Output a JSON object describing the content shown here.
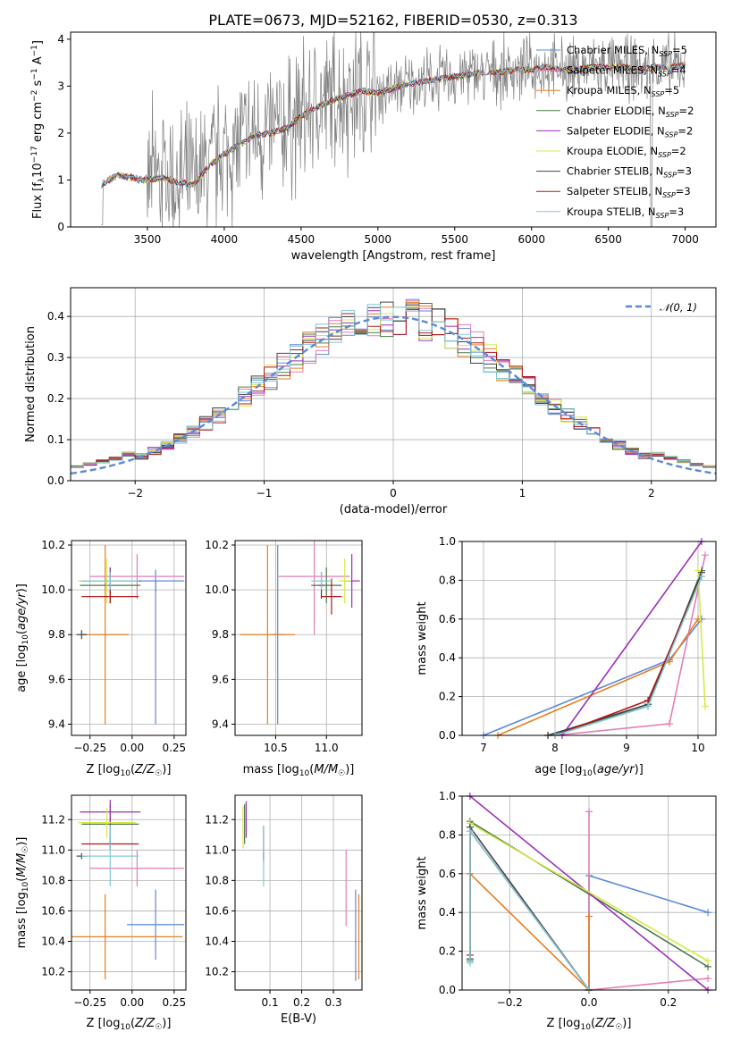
{
  "colors": {
    "Chabrier MILES": "#5b8ad6",
    "Salpeter MILES": "#e27fb8",
    "Kroupa MILES": "#e67e22",
    "Chabrier ELODIE": "#4a7a4a",
    "Salpeter ELODIE": "#9b30b8",
    "Kroupa ELODIE": "#d8e84a",
    "Chabrier STELIB": "#444444",
    "Salpeter STELIB": "#b01818",
    "Kroupa STELIB": "#80c8d8",
    "data": "#808080",
    "normal": "#5b8ad6"
  },
  "chart_data": [
    {
      "id": "spectrum",
      "type": "line",
      "title": "PLATE=0673, MJD=52162, FIBERID=0530, z=0.313",
      "xlabel": "wavelength [Angstrom, rest frame]",
      "ylabel": "Flux [f_λ 10^-17 erg cm^-2 s^-1 A^-1]",
      "xlim": [
        3000,
        7200
      ],
      "ylim": [
        0,
        4.15
      ],
      "xticks": [
        3500,
        4000,
        4500,
        5000,
        5500,
        6000,
        6500,
        7000
      ],
      "yticks": [
        0,
        1,
        2,
        3,
        4
      ],
      "grid": false,
      "legend_position": "right",
      "legend": [
        {
          "base": "Chabrier MILES, N",
          "sub": "SSP",
          "end": "=5"
        },
        {
          "base": "Salpeter MILES, N",
          "sub": "SSP",
          "end": "=4"
        },
        {
          "base": "Kroupa MILES, N",
          "sub": "SSP",
          "end": "=5"
        },
        {
          "base": "Chabrier ELODIE, N",
          "sub": "SSP",
          "end": "=2"
        },
        {
          "base": "Salpeter ELODIE, N",
          "sub": "SSP",
          "end": "=2"
        },
        {
          "base": "Kroupa ELODIE, N",
          "sub": "SSP",
          "end": "=2"
        },
        {
          "base": "Chabrier STELIB, N",
          "sub": "SSP",
          "end": "=3"
        },
        {
          "base": "Salpeter STELIB, N",
          "sub": "SSP",
          "end": "=3"
        },
        {
          "base": "Kroupa STELIB, N",
          "sub": "SSP",
          "end": "=3"
        }
      ],
      "model_shape": {
        "x": [
          3200,
          3300,
          3400,
          3500,
          3600,
          3700,
          3800,
          3900,
          4000,
          4100,
          4200,
          4300,
          4400,
          4500,
          4600,
          4700,
          4800,
          4900,
          5000,
          5100,
          5200,
          5300,
          5400,
          5500,
          5600,
          5700,
          5800,
          5900,
          6000,
          6100,
          6200,
          6300,
          6400,
          6500,
          6600,
          6700,
          6800,
          6900,
          7000
        ],
        "y": [
          0.9,
          1.1,
          1.05,
          1.0,
          1.05,
          0.95,
          0.9,
          1.3,
          1.55,
          1.75,
          1.95,
          2.0,
          2.1,
          2.35,
          2.55,
          2.7,
          2.8,
          2.9,
          2.85,
          2.95,
          3.05,
          3.1,
          3.15,
          3.2,
          3.25,
          3.3,
          3.3,
          3.35,
          3.35,
          3.4,
          3.35,
          3.35,
          3.4,
          3.4,
          3.4,
          3.35,
          3.4,
          3.4,
          3.45
        ]
      }
    },
    {
      "id": "residuals",
      "type": "histogram",
      "xlabel": "(data-model)/error",
      "ylabel": "Normed distribution",
      "xlim": [
        -2.5,
        2.5
      ],
      "ylim": [
        0,
        0.47
      ],
      "xticks": [
        -2,
        -1,
        0,
        1,
        2
      ],
      "yticks": [
        0.0,
        0.1,
        0.2,
        0.3,
        0.4
      ],
      "grid": true,
      "legend_position": "top-right",
      "legend": "N(0,1)",
      "bin_width": 0.1
    },
    {
      "id": "age_vs_Z",
      "type": "errorbar",
      "xlabel": "Z [log10(Z/Z☉)]",
      "ylabel": "age [log10(age/yr)]",
      "xlim": [
        -0.36,
        0.32
      ],
      "ylim": [
        9.35,
        10.22
      ],
      "xticks": [
        -0.25,
        0.0,
        0.25
      ],
      "yticks": [
        9.4,
        9.6,
        9.8,
        10.0,
        10.2
      ],
      "points": [
        {
          "model": "Chabrier MILES",
          "x": 0.14,
          "xerr": 0.17,
          "y": 10.04,
          "yerr": 0.05,
          "y2": 9.4
        },
        {
          "model": "Salpeter MILES",
          "x": 0.03,
          "xerr": 0.28,
          "y": 10.06,
          "yerr": 0.1
        },
        {
          "model": "Kroupa MILES",
          "x": -0.16,
          "xerr": 0.14,
          "y": 9.8,
          "yerr": 0.4
        },
        {
          "model": "Chabrier ELODIE",
          "x": -0.13,
          "xerr": 0.18,
          "y": 10.02,
          "yerr": 0.08
        },
        {
          "model": "Salpeter ELODIE",
          "x": -0.13,
          "xerr": 0.18,
          "y": 10.04,
          "yerr": 0.06
        },
        {
          "model": "Kroupa ELODIE",
          "x": -0.15,
          "xerr": 0.17,
          "y": 10.04,
          "yerr": 0.1
        },
        {
          "model": "Chabrier STELIB",
          "x": -0.3,
          "xerr": 0.03,
          "y": 9.8,
          "yerr": 0.02
        },
        {
          "model": "Salpeter STELIB",
          "x": -0.13,
          "xerr": 0.17,
          "y": 9.97,
          "yerr": 0.03
        },
        {
          "model": "Kroupa STELIB",
          "x": -0.13,
          "xerr": 0.17,
          "y": 10.04,
          "yerr": 0.04
        }
      ]
    },
    {
      "id": "age_vs_mass",
      "type": "errorbar",
      "xlabel": "mass [log10(M/M☉)]",
      "ylabel": "",
      "xlim": [
        10.1,
        11.35
      ],
      "ylim": [
        9.35,
        10.22
      ],
      "xticks": [
        10.5,
        11.0
      ],
      "yticks": [
        9.4,
        9.6,
        9.8,
        10.0,
        10.2
      ],
      "points": [
        {
          "model": "Chabrier MILES",
          "x": 10.52,
          "xerr": 0.05,
          "y": 9.8,
          "yerr": 0.4
        },
        {
          "model": "Salpeter MILES",
          "x": 10.88,
          "xerr": 0.35,
          "y": 10.06,
          "yerr": 0.26
        },
        {
          "model": "Kroupa MILES",
          "x": 10.42,
          "xerr": 0.27,
          "y": 9.8,
          "yerr": 0.4
        },
        {
          "model": "Chabrier ELODIE",
          "x": 11.0,
          "xerr": 0.15,
          "y": 10.02,
          "yerr": 0.08
        },
        {
          "model": "Salpeter ELODIE",
          "x": 11.25,
          "xerr": 0.08,
          "y": 10.04,
          "yerr": 0.12
        },
        {
          "model": "Kroupa ELODIE",
          "x": 11.18,
          "xerr": 0.06,
          "y": 10.04,
          "yerr": 0.1
        },
        {
          "model": "Chabrier STELIB",
          "x": 10.95,
          "xerr": 0.02,
          "y": 10.02,
          "yerr": 0.06
        },
        {
          "model": "Salpeter STELIB",
          "x": 11.05,
          "xerr": 0.1,
          "y": 9.97,
          "yerr": 0.08
        },
        {
          "model": "Kroupa STELIB",
          "x": 10.95,
          "xerr": 0.1,
          "y": 10.04,
          "yerr": 0.04
        }
      ]
    },
    {
      "id": "weight_vs_age",
      "type": "line",
      "xlabel": "age [log10(age/yr)]",
      "ylabel": "mass weight",
      "xlim": [
        6.7,
        10.25
      ],
      "ylim": [
        0,
        1.0
      ],
      "xticks": [
        7,
        8,
        9,
        10
      ],
      "yticks": [
        0.0,
        0.2,
        0.4,
        0.6,
        0.8,
        1.0
      ],
      "series": [
        {
          "model": "Chabrier MILES",
          "x": [
            7.0,
            9.6,
            10.05
          ],
          "y": [
            0.0,
            0.39,
            0.6
          ]
        },
        {
          "model": "Salpeter MILES",
          "x": [
            8.0,
            9.6,
            10.1
          ],
          "y": [
            0.0,
            0.06,
            0.93
          ]
        },
        {
          "model": "Kroupa MILES",
          "x": [
            7.2,
            9.6,
            10.0
          ],
          "y": [
            0.0,
            0.38,
            0.6
          ]
        },
        {
          "model": "Chabrier ELODIE",
          "x": [
            7.9,
            9.3,
            10.05
          ],
          "y": [
            0.0,
            0.15,
            0.85
          ]
        },
        {
          "model": "Salpeter ELODIE",
          "x": [
            8.1,
            10.05
          ],
          "y": [
            0.0,
            1.0
          ]
        },
        {
          "model": "Kroupa ELODIE",
          "x": [
            10.0,
            10.1
          ],
          "y": [
            0.85,
            0.15
          ]
        },
        {
          "model": "Chabrier STELIB",
          "x": [
            7.9,
            9.3,
            10.05
          ],
          "y": [
            0.0,
            0.16,
            0.84
          ]
        },
        {
          "model": "Salpeter STELIB",
          "x": [
            8.0,
            9.3,
            10.05
          ],
          "y": [
            0.0,
            0.18,
            0.82
          ]
        },
        {
          "model": "Kroupa STELIB",
          "x": [
            8.0,
            9.3,
            10.05
          ],
          "y": [
            0.0,
            0.15,
            0.82
          ]
        }
      ]
    },
    {
      "id": "mass_vs_Z",
      "type": "errorbar",
      "xlabel": "Z [log10(Z/Z☉)]",
      "ylabel": "mass [log10(M/M☉)]",
      "xlim": [
        -0.36,
        0.32
      ],
      "ylim": [
        10.08,
        11.36
      ],
      "xticks": [
        -0.25,
        0.0,
        0.25
      ],
      "yticks": [
        10.2,
        10.4,
        10.6,
        10.8,
        11.0,
        11.2
      ],
      "points": [
        {
          "model": "Chabrier MILES",
          "x": 0.14,
          "xerr": 0.17,
          "y": 10.51,
          "yerr": 0.23
        },
        {
          "model": "Salpeter MILES",
          "x": 0.03,
          "xerr": 0.28,
          "y": 10.88,
          "yerr": 0.12
        },
        {
          "model": "Kroupa MILES",
          "x": -0.16,
          "xerr": 0.46,
          "y": 10.43,
          "yerr": 0.28
        },
        {
          "model": "Chabrier ELODIE",
          "x": -0.13,
          "xerr": 0.17,
          "y": 11.17,
          "yerr": 0.13
        },
        {
          "model": "Salpeter ELODIE",
          "x": -0.13,
          "xerr": 0.18,
          "y": 11.25,
          "yerr": 0.08
        },
        {
          "model": "Kroupa ELODIE",
          "x": -0.15,
          "xerr": 0.17,
          "y": 11.18,
          "yerr": 0.1
        },
        {
          "model": "Chabrier STELIB",
          "x": -0.3,
          "xerr": 0.03,
          "y": 10.96,
          "yerr": 0.02
        },
        {
          "model": "Salpeter STELIB",
          "x": -0.13,
          "xerr": 0.17,
          "y": 11.04,
          "yerr": 0.04
        },
        {
          "model": "Kroupa STELIB",
          "x": -0.13,
          "xerr": 0.17,
          "y": 10.96,
          "yerr": 0.2
        }
      ]
    },
    {
      "id": "mass_vs_ebv",
      "type": "errorbar",
      "xlabel": "E(B-V)",
      "ylabel": "",
      "xlim": [
        -0.01,
        0.39
      ],
      "ylim": [
        10.08,
        11.36
      ],
      "xticks": [
        0.1,
        0.2,
        0.3
      ],
      "yticks": [
        10.2,
        10.4,
        10.6,
        10.8,
        11.0,
        11.2
      ],
      "points": [
        {
          "model": "Chabrier MILES",
          "x": 0.37,
          "y": 10.44,
          "yerr": 0.3
        },
        {
          "model": "Salpeter MILES",
          "x": 0.34,
          "y": 10.75,
          "yerr": 0.25
        },
        {
          "model": "Kroupa MILES",
          "x": 0.38,
          "y": 10.43,
          "yerr": 0.28
        },
        {
          "model": "Chabrier ELODIE",
          "x": 0.02,
          "y": 11.17,
          "yerr": 0.13
        },
        {
          "model": "Salpeter ELODIE",
          "x": 0.025,
          "y": 11.2,
          "yerr": 0.12
        },
        {
          "model": "Kroupa ELODIE",
          "x": 0.015,
          "y": 11.15,
          "yerr": 0.14
        },
        {
          "model": "Chabrier STELIB",
          "x": 0.08,
          "y": 10.96,
          "yerr": 0.02
        },
        {
          "model": "Salpeter STELIB",
          "x": 0.08,
          "y": 11.04,
          "yerr": 0.12
        },
        {
          "model": "Kroupa STELIB",
          "x": 0.08,
          "y": 10.96,
          "yerr": 0.2
        }
      ]
    },
    {
      "id": "weight_vs_Z",
      "type": "line",
      "xlabel": "Z [log10(Z/Z☉)]",
      "ylabel": "mass weight",
      "xlim": [
        -0.32,
        0.32
      ],
      "ylim": [
        0,
        1.0
      ],
      "xticks": [
        -0.2,
        0.0,
        0.2
      ],
      "yticks": [
        0.0,
        0.2,
        0.4,
        0.6,
        0.8,
        1.0
      ],
      "series": [
        {
          "model": "Chabrier MILES",
          "x": [
            0.0,
            0.0,
            0.3
          ],
          "y": [
            0.0,
            0.59,
            0.4
          ]
        },
        {
          "model": "Salpeter MILES",
          "x": [
            0.0,
            0.0,
            0.3
          ],
          "y": [
            0.92,
            0.0,
            0.06
          ]
        },
        {
          "model": "Kroupa MILES",
          "x": [
            -0.3,
            -0.3,
            0.0,
            0.0
          ],
          "y": [
            0.6,
            0.6,
            0.0,
            0.38
          ]
        },
        {
          "model": "Chabrier ELODIE",
          "x": [
            -0.3,
            -0.3,
            0.3
          ],
          "y": [
            0.15,
            0.87,
            0.12
          ]
        },
        {
          "model": "Salpeter ELODIE",
          "x": [
            -0.3,
            0.3
          ],
          "y": [
            1.0,
            0.0
          ]
        },
        {
          "model": "Kroupa ELODIE",
          "x": [
            -0.3,
            -0.3,
            0.3
          ],
          "y": [
            0.18,
            0.86,
            0.15
          ]
        },
        {
          "model": "Chabrier STELIB",
          "x": [
            -0.3,
            -0.3,
            0.0
          ],
          "y": [
            0.16,
            0.84,
            0.0
          ]
        },
        {
          "model": "Salpeter STELIB",
          "x": [
            -0.3,
            -0.3,
            0.0
          ],
          "y": [
            0.18,
            0.82,
            0.0
          ]
        },
        {
          "model": "Kroupa STELIB",
          "x": [
            -0.3,
            -0.3,
            0.0
          ],
          "y": [
            0.14,
            0.82,
            0.0
          ]
        }
      ]
    }
  ]
}
